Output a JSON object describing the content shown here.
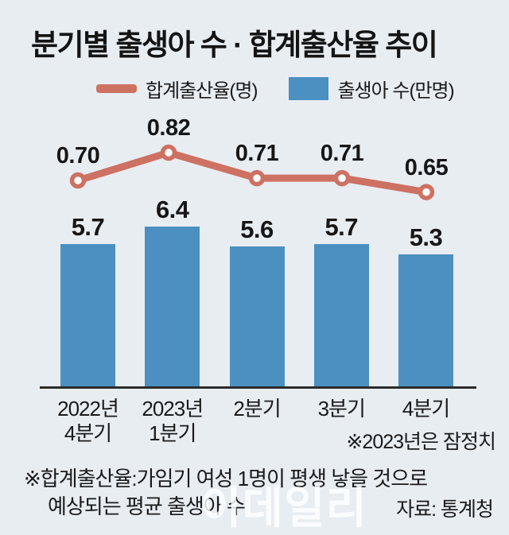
{
  "title": "분기별 출생아 수 · 합계출산율 추이",
  "colors": {
    "background": "#e8edf2",
    "bar": "#4b90c1",
    "line": "#cd7163",
    "marker_fill": "#ffffff",
    "axis": "#2b2b2b",
    "text": "#161616"
  },
  "legend": {
    "items": [
      {
        "label": "합계출산율(명)",
        "swatch": "line",
        "color": "#cd7163"
      },
      {
        "label": "출생아 수(만명)",
        "swatch": "bar",
        "color": "#4b90c1"
      }
    ]
  },
  "chart_data": {
    "type": "bar+line",
    "title": "분기별 출생아 수 · 합계출산율 추이",
    "categories": [
      "2022년 4분기",
      "2023년 1분기",
      "2분기",
      "3분기",
      "4분기"
    ],
    "series": [
      {
        "name": "합계출산율(명)",
        "type": "line",
        "color": "#cd7163",
        "values": [
          0.7,
          0.82,
          0.71,
          0.71,
          0.65
        ],
        "display_labels": [
          "0.70",
          "0.82",
          "0.71",
          "0.71",
          "0.65"
        ]
      },
      {
        "name": "출생아 수(만명)",
        "type": "bar",
        "color": "#4b90c1",
        "values": [
          5.7,
          6.4,
          5.6,
          5.7,
          5.3
        ],
        "display_labels": [
          "5.7",
          "6.4",
          "5.6",
          "5.7",
          "5.3"
        ]
      }
    ],
    "note": "※2023년은 잠정치",
    "source": "자료: 통계청",
    "legend_position": "top",
    "grid": false
  },
  "x_axis": {
    "label_lines": [
      [
        "2022년",
        "4분기"
      ],
      [
        "2023년",
        "1분기"
      ],
      [
        "2분기"
      ],
      [
        "3분기"
      ],
      [
        "4분기"
      ]
    ],
    "note": "※2023년은 잠정치"
  },
  "footnote": {
    "line1": "※합계출산율:가임기 여성 1명이 평생 낳을 것으로",
    "line2": "예상되는 평균 출생아 수"
  },
  "source": "자료: 통계청",
  "watermark": "이데일리"
}
